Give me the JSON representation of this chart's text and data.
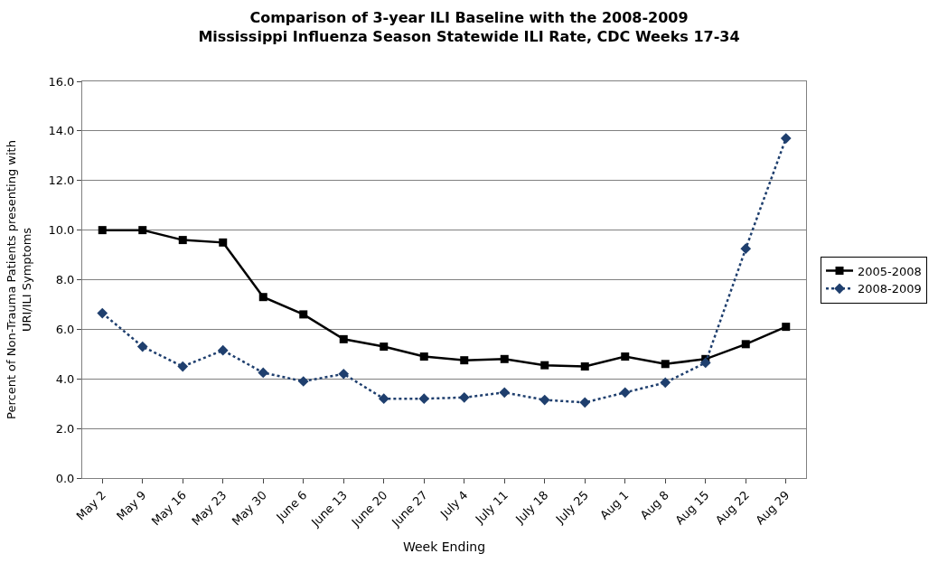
{
  "chart_data": {
    "type": "line",
    "title": "Comparison of 3-year ILI Baseline with the 2008-2009\nMississippi Influenza Season Statewide ILI Rate, CDC Weeks 17-34",
    "xlabel": "Week Ending",
    "ylabel": "Percent of Non-Trauma Patients presenting with\nURI/ILI Symptoms",
    "categories": [
      "May 2",
      "May 9",
      "May 16",
      "May 23",
      "May 30",
      "June 6",
      "June 13",
      "June 20",
      "June 27",
      "July 4",
      "July 11",
      "July 18",
      "July 25",
      "Aug 1",
      "Aug 8",
      "Aug 15",
      "Aug 22",
      "Aug 29"
    ],
    "series": [
      {
        "name": "2005-2008",
        "color": "#000000",
        "marker": "square",
        "line_style": "solid",
        "values": [
          10.0,
          10.0,
          9.6,
          9.5,
          7.3,
          6.6,
          5.6,
          5.3,
          4.9,
          4.75,
          4.8,
          4.55,
          4.5,
          4.9,
          4.6,
          4.8,
          5.4,
          6.1
        ]
      },
      {
        "name": "2008-2009",
        "color": "#1f3f6e",
        "marker": "diamond",
        "line_style": "dotted",
        "values": [
          6.65,
          5.3,
          4.5,
          5.15,
          4.25,
          3.9,
          4.2,
          3.2,
          3.2,
          3.25,
          3.45,
          3.15,
          3.05,
          3.45,
          3.85,
          4.65,
          9.25,
          13.7
        ]
      }
    ],
    "ylim": [
      0,
      16
    ],
    "yticks": [
      {
        "value": 0,
        "label": "0.0"
      },
      {
        "value": 2,
        "label": "2.0"
      },
      {
        "value": 4,
        "label": "4.0"
      },
      {
        "value": 6,
        "label": "6.0"
      },
      {
        "value": 8,
        "label": "8.0"
      },
      {
        "value": 10,
        "label": "10.0"
      },
      {
        "value": 12,
        "label": "12.0"
      },
      {
        "value": 14,
        "label": "14.0"
      },
      {
        "value": 16,
        "label": "16.0"
      }
    ],
    "grid": "y",
    "legend": "right"
  }
}
